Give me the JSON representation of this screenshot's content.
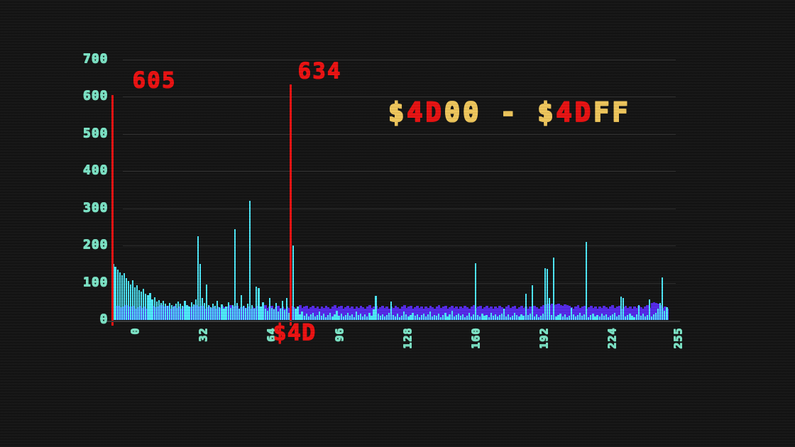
{
  "colors": {
    "background": "#141414",
    "bar_cyan": "#4de8f8",
    "band_purple": "#5429e9",
    "marker_red": "#ec1111",
    "tick_teal": "#7ce4c6",
    "title_gold": "#f0c75c",
    "title_red": "#e81212",
    "gridline": "#2e2e2e"
  },
  "title": {
    "full_text": "$4D00 - $4DFF",
    "parts": [
      {
        "text": "$",
        "hex": "#f0c75c"
      },
      {
        "text": "4D",
        "hex": "#e81212"
      },
      {
        "text": "00",
        "hex": "#f0c75c"
      },
      {
        "text": " - ",
        "hex": "#f0c75c"
      },
      {
        "text": "$",
        "hex": "#f0c75c"
      },
      {
        "text": "4D",
        "hex": "#e81212"
      },
      {
        "text": "FF",
        "hex": "#f0c75c"
      }
    ]
  },
  "chart_data": {
    "type": "bar",
    "title": "$4D00 - $4DFF",
    "xlabel": "",
    "ylabel": "",
    "xlim": [
      0,
      255
    ],
    "ylim": [
      0,
      700
    ],
    "grid": true,
    "legend": "none",
    "yticks": [
      0,
      100,
      200,
      300,
      400,
      500,
      600,
      700
    ],
    "xticks": [
      0,
      32,
      64,
      96,
      128,
      160,
      192,
      224,
      255
    ],
    "x_marker": {
      "label": "$4D",
      "bin": 82
    },
    "markers": [
      {
        "label": "605",
        "value": 605,
        "bin": 0
      },
      {
        "label": "634",
        "value": 634,
        "bin": 82
      }
    ],
    "series": [
      {
        "name": "overlay-band-histogram",
        "color": "#5429e9",
        "values": [
          36,
          33,
          38,
          34,
          31,
          37,
          41,
          33,
          36,
          39,
          30,
          34,
          38,
          33,
          36,
          31,
          36,
          33,
          38,
          34,
          31,
          37,
          41,
          33,
          36,
          39,
          30,
          34,
          38,
          33,
          36,
          31,
          36,
          33,
          38,
          34,
          31,
          37,
          41,
          33,
          36,
          39,
          30,
          34,
          38,
          33,
          36,
          31,
          36,
          33,
          38,
          34,
          31,
          37,
          41,
          33,
          36,
          39,
          30,
          34,
          38,
          33,
          36,
          31,
          36,
          33,
          38,
          34,
          31,
          37,
          41,
          33,
          36,
          39,
          30,
          34,
          38,
          33,
          36,
          31,
          36,
          33,
          38,
          34,
          31,
          37,
          41,
          33,
          36,
          39,
          30,
          34,
          38,
          33,
          36,
          31,
          36,
          33,
          38,
          34,
          31,
          37,
          41,
          33,
          36,
          39,
          30,
          34,
          38,
          33,
          36,
          31,
          36,
          33,
          38,
          34,
          31,
          37,
          41,
          33,
          36,
          39,
          30,
          34,
          38,
          33,
          36,
          31,
          36,
          33,
          38,
          34,
          31,
          37,
          41,
          33,
          36,
          39,
          30,
          34,
          38,
          33,
          36,
          31,
          36,
          33,
          38,
          34,
          31,
          37,
          41,
          33,
          36,
          39,
          30,
          34,
          38,
          33,
          36,
          31,
          36,
          33,
          38,
          34,
          31,
          37,
          41,
          33,
          36,
          39,
          30,
          34,
          38,
          33,
          36,
          31,
          36,
          33,
          38,
          34,
          31,
          37,
          41,
          33,
          36,
          39,
          30,
          34,
          38,
          33,
          36,
          31,
          36,
          33,
          38,
          34,
          31,
          37,
          41,
          42,
          44,
          41,
          43,
          40,
          42,
          44,
          41,
          39,
          42,
          40,
          38,
          34,
          31,
          37,
          41,
          33,
          36,
          39,
          30,
          34,
          38,
          33,
          36,
          31,
          36,
          33,
          38,
          34,
          31,
          37,
          41,
          33,
          36,
          39,
          30,
          34,
          38,
          33,
          36,
          31,
          36,
          33,
          38,
          34,
          31,
          37,
          41,
          33,
          46,
          47,
          45,
          43,
          41,
          33,
          36,
          31
        ]
      },
      {
        "name": "value-histogram",
        "color": "#4de8f8",
        "values": [
          150,
          143,
          136,
          128,
          120,
          125,
          112,
          104,
          96,
          106,
          88,
          93,
          81,
          76,
          84,
          71,
          66,
          73,
          56,
          61,
          49,
          53,
          46,
          51,
          43,
          39,
          45,
          41,
          37,
          43,
          49,
          44,
          38,
          52,
          40,
          36,
          47,
          42,
          55,
          225,
          150,
          60,
          45,
          95,
          40,
          34,
          44,
          38,
          52,
          35,
          42,
          30,
          36,
          48,
          33,
          40,
          245,
          45,
          30,
          66,
          38,
          32,
          44,
          320,
          40,
          30,
          90,
          85,
          36,
          48,
          30,
          25,
          60,
          32,
          28,
          45,
          22,
          30,
          52,
          26,
          60,
          20,
          18,
          200,
          30,
          36,
          15,
          22,
          12,
          18,
          10,
          16,
          20,
          9,
          14,
          22,
          11,
          17,
          8,
          13,
          19,
          10,
          15,
          24,
          12,
          18,
          9,
          14,
          20,
          11,
          16,
          8,
          22,
          13,
          18,
          10,
          15,
          9,
          20,
          12,
          28,
          65,
          18,
          11,
          15,
          9,
          13,
          19,
          50,
          14,
          10,
          17,
          8,
          12,
          22,
          16,
          9,
          14,
          19,
          11,
          15,
          8,
          13,
          18,
          10,
          16,
          22,
          9,
          14,
          11,
          17,
          8,
          13,
          19,
          10,
          15,
          25,
          9,
          14,
          18,
          11,
          16,
          8,
          12,
          20,
          10,
          15,
          152,
          13,
          9,
          17,
          11,
          14,
          8,
          19,
          12,
          16,
          9,
          13,
          18,
          30,
          10,
          15,
          8,
          12,
          20,
          14,
          9,
          16,
          11,
          70,
          13,
          18,
          93,
          10,
          15,
          8,
          12,
          17,
          140,
          138,
          60,
          14,
          167,
          9,
          13,
          18,
          10,
          15,
          8,
          12,
          33,
          16,
          9,
          14,
          19,
          11,
          15,
          210,
          8,
          13,
          17,
          10,
          14,
          9,
          18,
          12,
          15,
          8,
          11,
          16,
          20,
          10,
          13,
          63,
          60,
          9,
          14,
          17,
          11,
          8,
          15,
          40,
          12,
          18,
          10,
          14,
          55,
          9,
          16,
          20,
          30,
          45,
          115,
          25,
          35
        ]
      }
    ]
  }
}
